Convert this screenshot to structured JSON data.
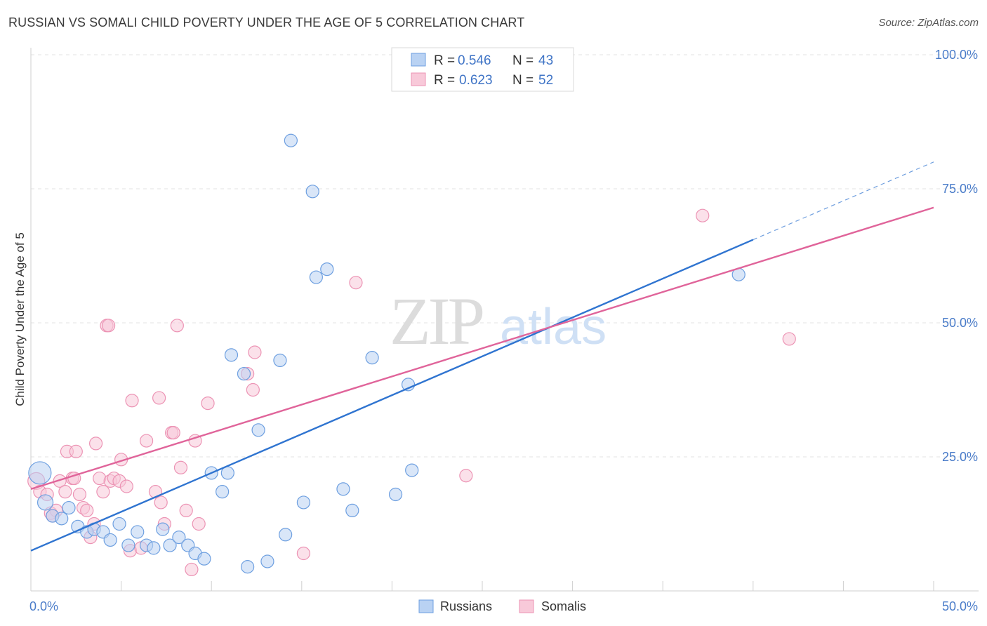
{
  "header": {
    "title": "RUSSIAN VS SOMALI CHILD POVERTY UNDER THE AGE OF 5 CORRELATION CHART",
    "source": "Source: ZipAtlas.com"
  },
  "chart_data": {
    "type": "scatter",
    "title": "RUSSIAN VS SOMALI CHILD POVERTY UNDER THE AGE OF 5 CORRELATION CHART",
    "xlabel": "",
    "ylabel": "Child Poverty Under the Age of 5",
    "xlim": [
      0,
      50
    ],
    "ylim": [
      0,
      100
    ],
    "x_tick_labels": [
      "0.0%",
      "50.0%"
    ],
    "y_ticks": [
      25,
      50,
      75,
      100
    ],
    "y_tick_labels": [
      "25.0%",
      "50.0%",
      "75.0%",
      "100.0%"
    ],
    "grid": true,
    "watermark": "ZIPatlas",
    "legend": {
      "placement": "top-center",
      "entries": [
        {
          "r_label": "R =",
          "r_value": "0.546",
          "n_label": "N =",
          "n_value": "43"
        },
        {
          "r_label": "R =",
          "r_value": "0.623",
          "n_label": "N =",
          "n_value": "52"
        }
      ]
    },
    "series": [
      {
        "name": "Russians",
        "color": "#6d9fe0",
        "fill": "#b9d2f3",
        "line_color": "#2f74d0",
        "trend": {
          "x0": 0,
          "y0": 7.5,
          "x1": 40,
          "y1": 65.5,
          "dash_to_x": 50,
          "dash_to_y": 80
        },
        "points": [
          [
            0.5,
            22,
            16
          ],
          [
            0.8,
            16.5,
            11
          ],
          [
            1.2,
            14,
            9
          ],
          [
            1.7,
            13.5,
            9
          ],
          [
            2.1,
            15.5,
            9
          ],
          [
            2.6,
            12,
            9
          ],
          [
            3.1,
            11,
            9
          ],
          [
            3.5,
            11.5,
            9
          ],
          [
            4.0,
            11,
            9
          ],
          [
            4.4,
            9.5,
            9
          ],
          [
            4.9,
            12.5,
            9
          ],
          [
            5.4,
            8.5,
            9
          ],
          [
            5.9,
            11,
            9
          ],
          [
            6.4,
            8.5,
            9
          ],
          [
            6.8,
            8,
            9
          ],
          [
            7.3,
            11.5,
            9
          ],
          [
            7.7,
            8.5,
            9
          ],
          [
            8.2,
            10,
            9
          ],
          [
            8.7,
            8.5,
            9
          ],
          [
            9.1,
            7,
            9
          ],
          [
            9.6,
            6,
            9
          ],
          [
            10.0,
            22,
            9
          ],
          [
            10.6,
            18.5,
            9
          ],
          [
            10.9,
            22,
            9
          ],
          [
            11.1,
            44,
            9
          ],
          [
            11.8,
            40.5,
            9
          ],
          [
            12.0,
            4.5,
            9
          ],
          [
            12.6,
            30,
            9
          ],
          [
            13.1,
            5.5,
            9
          ],
          [
            13.8,
            43,
            9
          ],
          [
            14.1,
            10.5,
            9
          ],
          [
            14.4,
            84,
            9
          ],
          [
            15.1,
            16.5,
            9
          ],
          [
            15.6,
            74.5,
            9
          ],
          [
            15.8,
            58.5,
            9
          ],
          [
            16.4,
            60,
            9
          ],
          [
            17.3,
            19,
            9
          ],
          [
            17.8,
            15,
            9
          ],
          [
            18.9,
            43.5,
            9
          ],
          [
            20.2,
            18,
            9
          ],
          [
            20.9,
            38.5,
            9
          ],
          [
            21.1,
            22.5,
            9
          ],
          [
            39.2,
            59,
            9
          ]
        ]
      },
      {
        "name": "Somalis",
        "color": "#ec93b4",
        "fill": "#f8c9d9",
        "line_color": "#e0649a",
        "trend": {
          "x0": 0,
          "y0": 19,
          "x1": 50,
          "y1": 71.5
        },
        "points": [
          [
            0.3,
            20.5,
            12
          ],
          [
            0.5,
            18.5,
            9
          ],
          [
            0.9,
            18,
            9
          ],
          [
            1.1,
            14.5,
            9
          ],
          [
            1.4,
            15,
            9
          ],
          [
            1.6,
            20.5,
            9
          ],
          [
            1.9,
            18.5,
            9
          ],
          [
            2.0,
            26,
            9
          ],
          [
            2.3,
            21,
            9
          ],
          [
            2.5,
            26,
            9
          ],
          [
            2.7,
            18,
            9
          ],
          [
            2.9,
            15.5,
            9
          ],
          [
            3.1,
            15,
            9
          ],
          [
            3.3,
            10,
            9
          ],
          [
            3.5,
            12.5,
            9
          ],
          [
            3.6,
            27.5,
            9
          ],
          [
            3.8,
            21,
            9
          ],
          [
            4.0,
            18.5,
            9
          ],
          [
            4.2,
            49.5,
            9
          ],
          [
            4.4,
            20.5,
            9
          ],
          [
            4.6,
            21,
            9
          ],
          [
            4.9,
            20.5,
            9
          ],
          [
            5.0,
            24.5,
            9
          ],
          [
            5.3,
            19.5,
            9
          ],
          [
            5.5,
            7.5,
            9
          ],
          [
            5.6,
            35.5,
            9
          ],
          [
            6.1,
            8,
            9
          ],
          [
            6.4,
            28,
            9
          ],
          [
            6.9,
            18.5,
            9
          ],
          [
            7.1,
            36,
            9
          ],
          [
            7.2,
            16.5,
            9
          ],
          [
            7.4,
            12.5,
            9
          ],
          [
            7.8,
            29.5,
            9
          ],
          [
            8.1,
            49.5,
            9
          ],
          [
            8.3,
            23,
            9
          ],
          [
            8.6,
            15,
            9
          ],
          [
            8.9,
            4,
            9
          ],
          [
            9.1,
            28,
            9
          ],
          [
            9.3,
            12.5,
            9
          ],
          [
            9.8,
            35,
            9
          ],
          [
            12.0,
            40.5,
            9
          ],
          [
            12.3,
            37.5,
            9
          ],
          [
            12.4,
            44.5,
            9
          ],
          [
            15.1,
            7,
            9
          ],
          [
            18.0,
            57.5,
            9
          ],
          [
            24.1,
            21.5,
            9
          ],
          [
            37.2,
            70,
            9
          ],
          [
            42.0,
            47,
            9
          ],
          [
            7.9,
            29.5,
            9
          ],
          [
            4.3,
            49.5,
            9
          ],
          [
            1.2,
            14,
            9
          ],
          [
            2.4,
            21,
            9
          ]
        ]
      }
    ],
    "bottom_legend": [
      "Russians",
      "Somalis"
    ]
  }
}
